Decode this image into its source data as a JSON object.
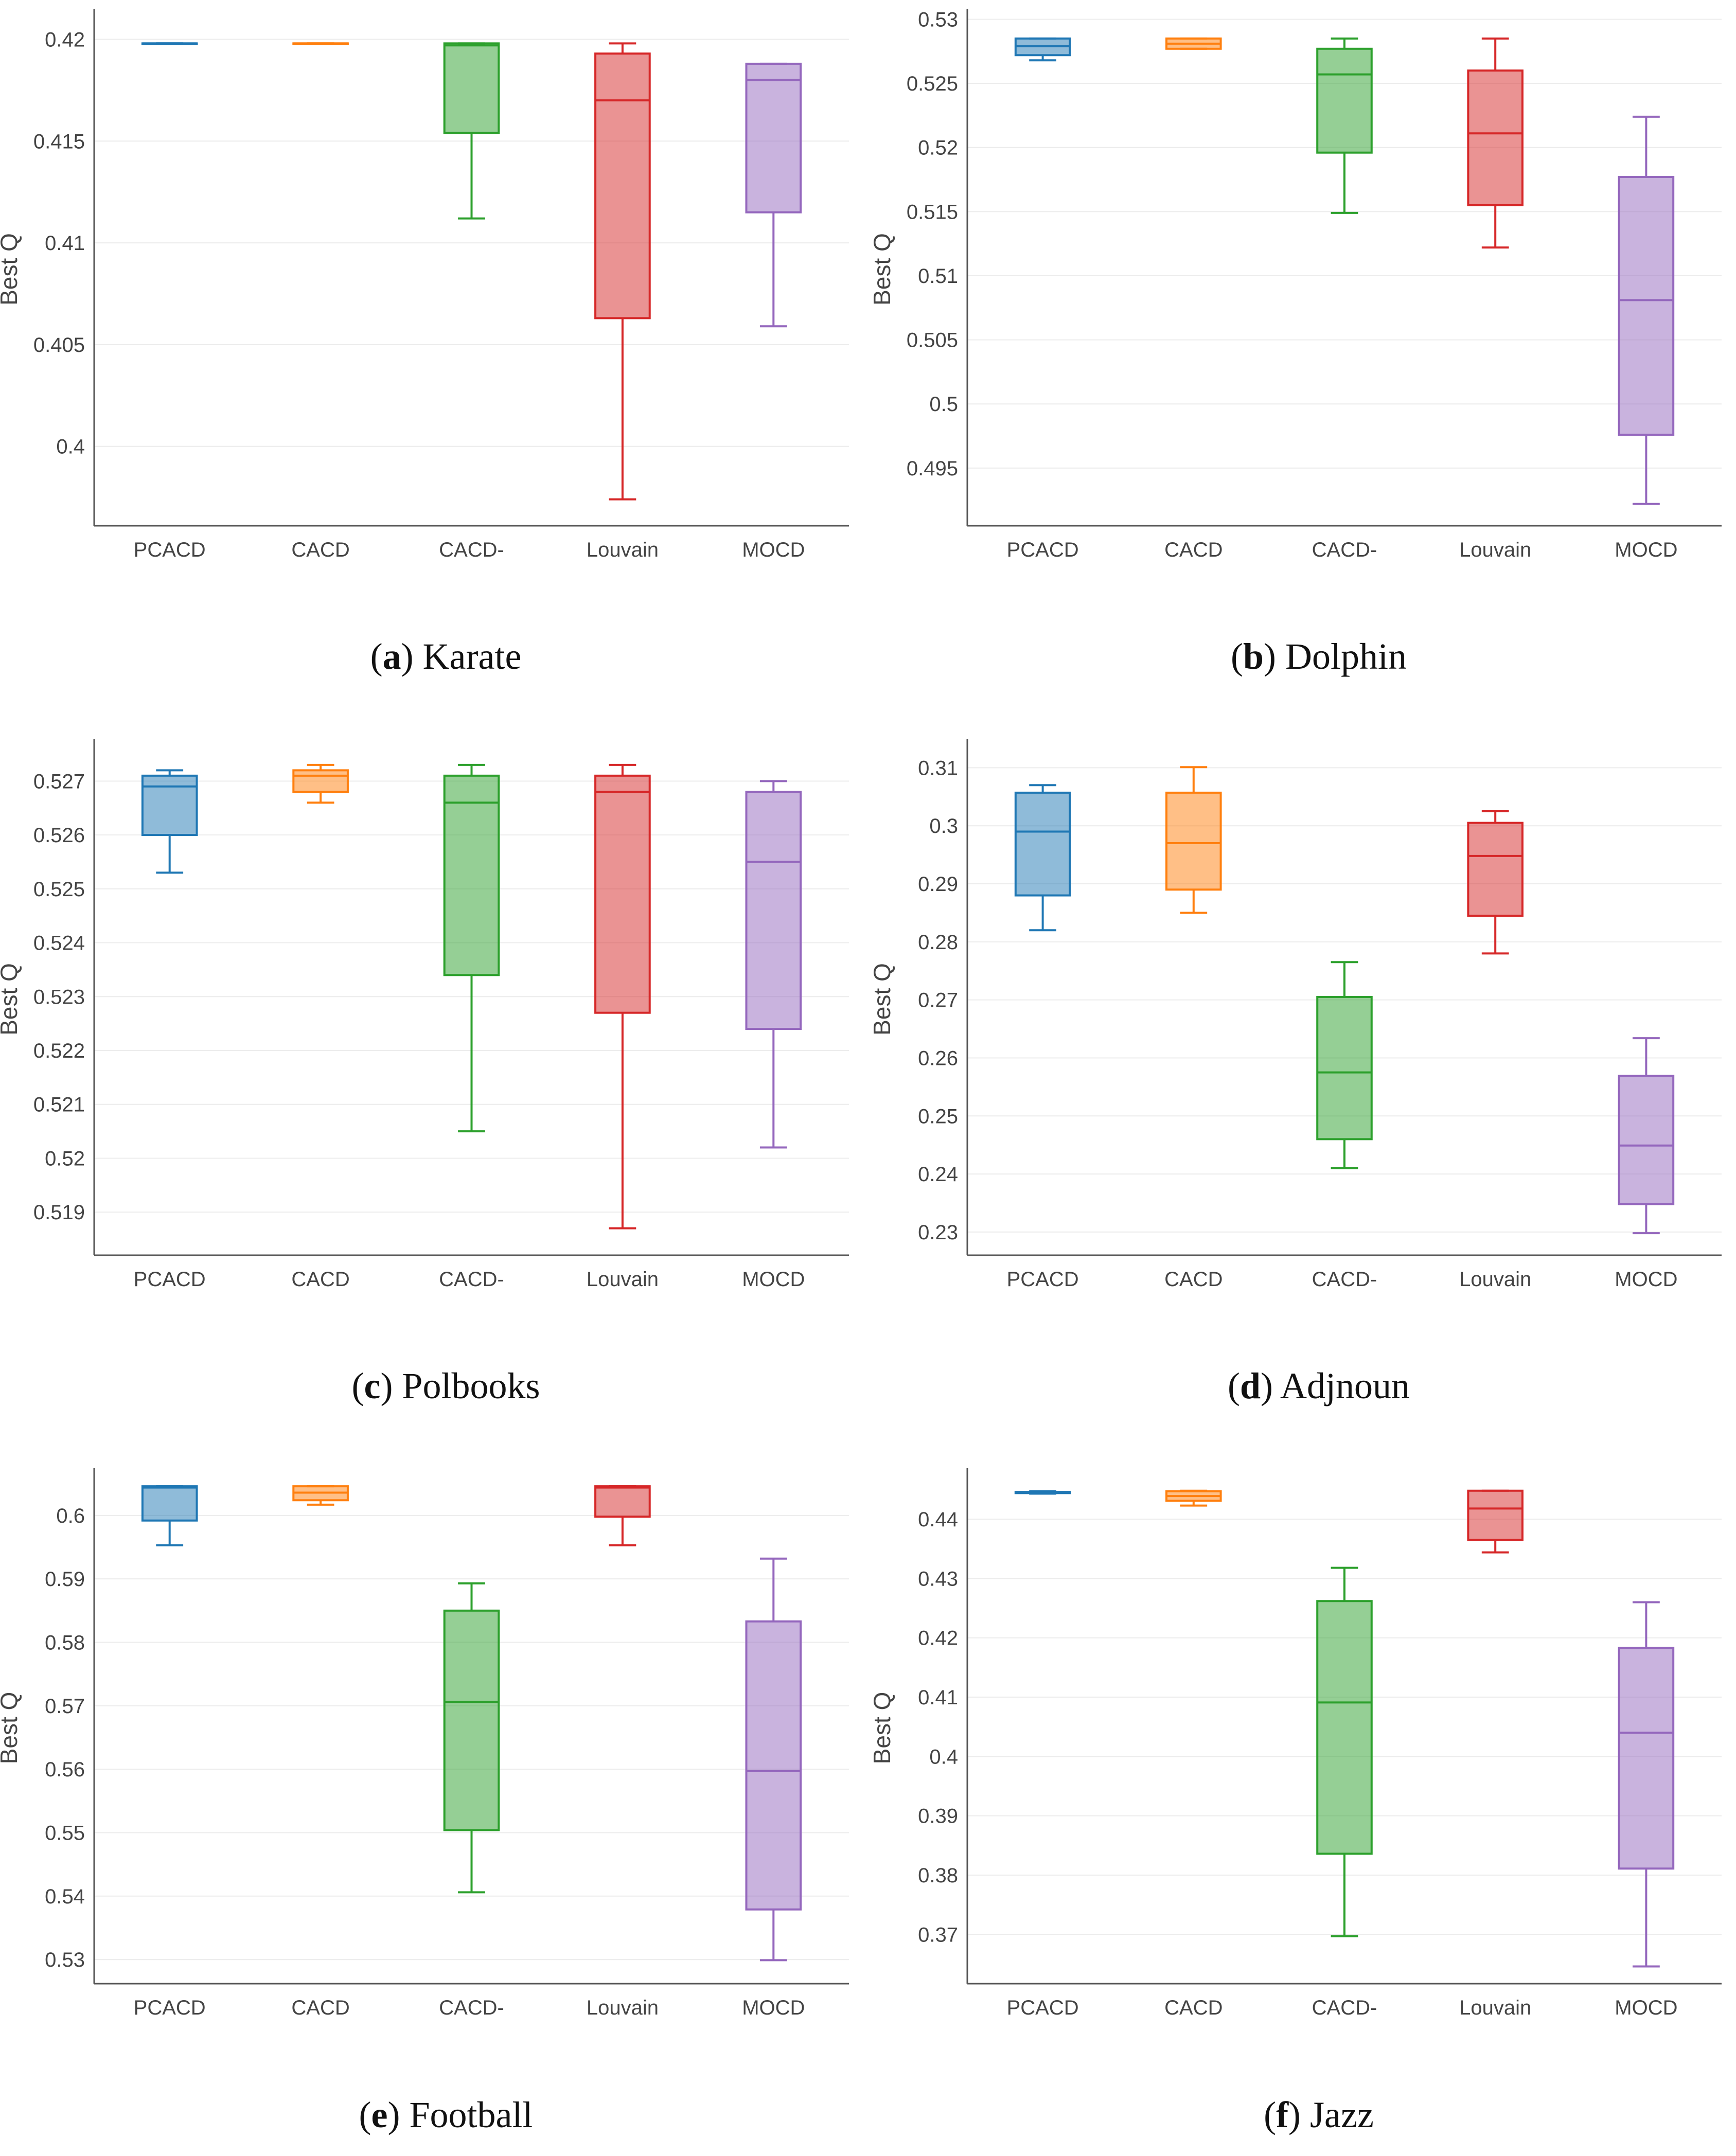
{
  "figure": {
    "colors": {
      "PCACD": "#1f77b4",
      "CACD": "#ff7f0e",
      "CACD-": "#2ca02c",
      "Louvain": "#d62728",
      "MOCD": "#9467bd"
    }
  },
  "chart_data": [
    {
      "type": "box",
      "caption_letter": "a",
      "caption_name": "Karate",
      "ylabel": "Best Q",
      "categories": [
        "PCACD",
        "CACD",
        "CACD-",
        "Louvain",
        "MOCD"
      ],
      "ylim": [
        0.3961,
        0.4213
      ],
      "yticks": [
        0.4,
        0.405,
        0.41,
        0.415,
        0.42
      ],
      "ytick_labels": [
        "0.4",
        "0.405",
        "0.41",
        "0.415",
        "0.42"
      ],
      "series": [
        {
          "name": "PCACD",
          "min": 0.4198,
          "q1": 0.4198,
          "median": 0.4198,
          "q3": 0.4198,
          "max": 0.4198
        },
        {
          "name": "CACD",
          "min": 0.4198,
          "q1": 0.4198,
          "median": 0.4198,
          "q3": 0.4198,
          "max": 0.4198
        },
        {
          "name": "CACD-",
          "min": 0.4112,
          "q1": 0.4154,
          "median": 0.4197,
          "q3": 0.4198,
          "max": 0.4198
        },
        {
          "name": "Louvain",
          "min": 0.3974,
          "q1": 0.4063,
          "median": 0.417,
          "q3": 0.4193,
          "max": 0.4198
        },
        {
          "name": "MOCD",
          "min": 0.4059,
          "q1": 0.4115,
          "median": 0.418,
          "q3": 0.4188,
          "max": 0.4188
        }
      ]
    },
    {
      "type": "box",
      "caption_letter": "b",
      "caption_name": "Dolphin",
      "ylabel": "Best Q",
      "categories": [
        "PCACD",
        "CACD",
        "CACD-",
        "Louvain",
        "MOCD"
      ],
      "ylim": [
        0.4905,
        0.5305
      ],
      "yticks": [
        0.495,
        0.5,
        0.505,
        0.51,
        0.515,
        0.52,
        0.525,
        0.53
      ],
      "ytick_labels": [
        "0.495",
        "0.5",
        "0.505",
        "0.51",
        "0.515",
        "0.52",
        "0.525",
        "0.53"
      ],
      "series": [
        {
          "name": "PCACD",
          "min": 0.5268,
          "q1": 0.5272,
          "median": 0.5279,
          "q3": 0.5285,
          "max": 0.5285
        },
        {
          "name": "CACD",
          "min": 0.5277,
          "q1": 0.5277,
          "median": 0.5281,
          "q3": 0.5285,
          "max": 0.5285
        },
        {
          "name": "CACD-",
          "min": 0.5149,
          "q1": 0.5196,
          "median": 0.5257,
          "q3": 0.5277,
          "max": 0.5285
        },
        {
          "name": "Louvain",
          "min": 0.5122,
          "q1": 0.5155,
          "median": 0.5211,
          "q3": 0.526,
          "max": 0.5285
        },
        {
          "name": "MOCD",
          "min": 0.4922,
          "q1": 0.4976,
          "median": 0.5081,
          "q3": 0.5177,
          "max": 0.5224
        }
      ]
    },
    {
      "type": "box",
      "caption_letter": "c",
      "caption_name": "Polbooks",
      "ylabel": "Best Q",
      "categories": [
        "PCACD",
        "CACD",
        "CACD-",
        "Louvain",
        "MOCD"
      ],
      "ylim": [
        0.5182,
        0.5277
      ],
      "yticks": [
        0.519,
        0.52,
        0.521,
        0.522,
        0.523,
        0.524,
        0.525,
        0.526,
        0.527
      ],
      "ytick_labels": [
        "0.519",
        "0.52",
        "0.521",
        "0.522",
        "0.523",
        "0.524",
        "0.525",
        "0.526",
        "0.527"
      ],
      "series": [
        {
          "name": "PCACD",
          "min": 0.5253,
          "q1": 0.526,
          "median": 0.5269,
          "q3": 0.5271,
          "max": 0.5272
        },
        {
          "name": "CACD",
          "min": 0.5266,
          "q1": 0.5268,
          "median": 0.5271,
          "q3": 0.5272,
          "max": 0.5273
        },
        {
          "name": "CACD-",
          "min": 0.5205,
          "q1": 0.5234,
          "median": 0.5266,
          "q3": 0.5271,
          "max": 0.5273
        },
        {
          "name": "Louvain",
          "min": 0.5187,
          "q1": 0.5227,
          "median": 0.5268,
          "q3": 0.5271,
          "max": 0.5273
        },
        {
          "name": "MOCD",
          "min": 0.5202,
          "q1": 0.5224,
          "median": 0.5255,
          "q3": 0.5268,
          "max": 0.527
        }
      ]
    },
    {
      "type": "box",
      "caption_letter": "d",
      "caption_name": "Adjnoun",
      "ylabel": "Best Q",
      "categories": [
        "PCACD",
        "CACD",
        "CACD-",
        "Louvain",
        "MOCD"
      ],
      "ylim": [
        0.226,
        0.3142
      ],
      "yticks": [
        0.23,
        0.24,
        0.25,
        0.26,
        0.27,
        0.28,
        0.29,
        0.3,
        0.31
      ],
      "ytick_labels": [
        "0.23",
        "0.24",
        "0.25",
        "0.26",
        "0.27",
        "0.28",
        "0.29",
        "0.3",
        "0.31"
      ],
      "series": [
        {
          "name": "PCACD",
          "min": 0.282,
          "q1": 0.288,
          "median": 0.299,
          "q3": 0.3057,
          "max": 0.307
        },
        {
          "name": "CACD",
          "min": 0.285,
          "q1": 0.289,
          "median": 0.297,
          "q3": 0.3057,
          "max": 0.3101
        },
        {
          "name": "CACD-",
          "min": 0.241,
          "q1": 0.246,
          "median": 0.2575,
          "q3": 0.2705,
          "max": 0.2765
        },
        {
          "name": "Louvain",
          "min": 0.278,
          "q1": 0.2845,
          "median": 0.2948,
          "q3": 0.3005,
          "max": 0.3025
        },
        {
          "name": "MOCD",
          "min": 0.2298,
          "q1": 0.2348,
          "median": 0.2449,
          "q3": 0.2569,
          "max": 0.2634
        }
      ]
    },
    {
      "type": "box",
      "caption_letter": "e",
      "caption_name": "Football",
      "ylabel": "Best Q",
      "categories": [
        "PCACD",
        "CACD",
        "CACD-",
        "Louvain",
        "MOCD"
      ],
      "ylim": [
        0.5262,
        0.6068
      ],
      "yticks": [
        0.53,
        0.54,
        0.55,
        0.56,
        0.57,
        0.58,
        0.59,
        0.6
      ],
      "ytick_labels": [
        "0.53",
        "0.54",
        "0.55",
        "0.56",
        "0.57",
        "0.58",
        "0.59",
        "0.6"
      ],
      "series": [
        {
          "name": "PCACD",
          "min": 0.5953,
          "q1": 0.5992,
          "median": 0.6044,
          "q3": 0.6046,
          "max": 0.6046
        },
        {
          "name": "CACD",
          "min": 0.6017,
          "q1": 0.6024,
          "median": 0.6036,
          "q3": 0.6046,
          "max": 0.6046
        },
        {
          "name": "CACD-",
          "min": 0.5406,
          "q1": 0.5504,
          "median": 0.5706,
          "q3": 0.585,
          "max": 0.5893
        },
        {
          "name": "Louvain",
          "min": 0.5953,
          "q1": 0.5998,
          "median": 0.6044,
          "q3": 0.6046,
          "max": 0.6046
        },
        {
          "name": "MOCD",
          "min": 0.5299,
          "q1": 0.5379,
          "median": 0.5597,
          "q3": 0.5833,
          "max": 0.5932
        }
      ]
    },
    {
      "type": "box",
      "caption_letter": "f",
      "caption_name": "Jazz",
      "ylabel": "Best Q",
      "categories": [
        "PCACD",
        "CACD",
        "CACD-",
        "Louvain",
        "MOCD"
      ],
      "ylim": [
        0.3617,
        0.4479
      ],
      "yticks": [
        0.37,
        0.38,
        0.39,
        0.4,
        0.41,
        0.42,
        0.43,
        0.44
      ],
      "ytick_labels": [
        "0.37",
        "0.38",
        "0.39",
        "0.4",
        "0.41",
        "0.42",
        "0.43",
        "0.44"
      ],
      "series": [
        {
          "name": "PCACD",
          "min": 0.4443,
          "q1": 0.4444,
          "median": 0.4445,
          "q3": 0.4446,
          "max": 0.4447
        },
        {
          "name": "CACD",
          "min": 0.4423,
          "q1": 0.4431,
          "median": 0.4439,
          "q3": 0.4447,
          "max": 0.4448
        },
        {
          "name": "CACD-",
          "min": 0.3697,
          "q1": 0.3836,
          "median": 0.4091,
          "q3": 0.4262,
          "max": 0.4318
        },
        {
          "name": "Louvain",
          "min": 0.4344,
          "q1": 0.4365,
          "median": 0.4418,
          "q3": 0.4448,
          "max": 0.4448
        },
        {
          "name": "MOCD",
          "min": 0.3646,
          "q1": 0.3811,
          "median": 0.404,
          "q3": 0.4183,
          "max": 0.426
        }
      ]
    }
  ]
}
